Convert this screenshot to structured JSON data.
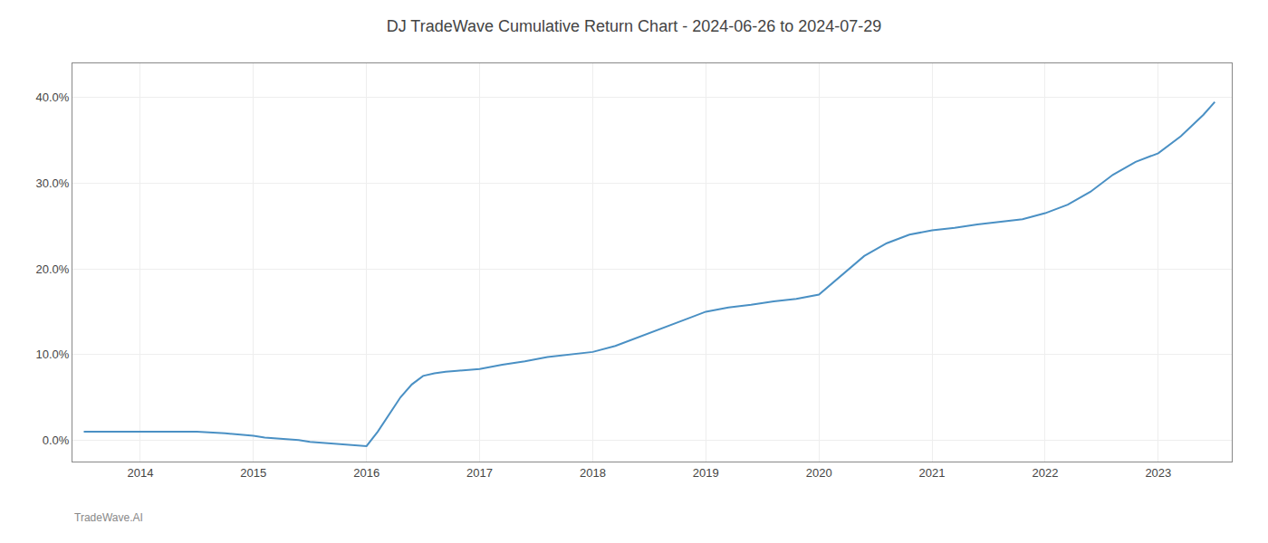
{
  "chart_data": {
    "type": "line",
    "title": "DJ TradeWave Cumulative Return Chart - 2024-06-26 to 2024-07-29",
    "annotations": [
      "TradeWave.AI"
    ],
    "x": [
      2013.5,
      2014.0,
      2014.25,
      2014.5,
      2014.75,
      2015.0,
      2015.1,
      2015.2,
      2015.3,
      2015.4,
      2015.5,
      2015.6,
      2015.7,
      2015.8,
      2015.9,
      2016.0,
      2016.1,
      2016.2,
      2016.3,
      2016.4,
      2016.5,
      2016.6,
      2016.7,
      2016.8,
      2016.9,
      2017.0,
      2017.2,
      2017.4,
      2017.6,
      2017.8,
      2018.0,
      2018.2,
      2018.4,
      2018.6,
      2018.8,
      2019.0,
      2019.2,
      2019.4,
      2019.6,
      2019.8,
      2020.0,
      2020.2,
      2020.4,
      2020.6,
      2020.8,
      2021.0,
      2021.2,
      2021.4,
      2021.6,
      2021.8,
      2022.0,
      2022.2,
      2022.4,
      2022.6,
      2022.8,
      2023.0,
      2023.2,
      2023.4,
      2023.5
    ],
    "values": [
      0.01,
      0.01,
      0.01,
      0.01,
      0.008,
      0.005,
      0.003,
      0.002,
      0.001,
      0.0,
      -0.002,
      -0.003,
      -0.004,
      -0.005,
      -0.006,
      -0.007,
      0.01,
      0.03,
      0.05,
      0.065,
      0.075,
      0.078,
      0.08,
      0.081,
      0.082,
      0.083,
      0.088,
      0.092,
      0.097,
      0.1,
      0.103,
      0.11,
      0.12,
      0.13,
      0.14,
      0.15,
      0.155,
      0.158,
      0.162,
      0.165,
      0.17,
      0.193,
      0.215,
      0.23,
      0.24,
      0.245,
      0.248,
      0.252,
      0.255,
      0.258,
      0.265,
      0.275,
      0.29,
      0.31,
      0.325,
      0.335,
      0.355,
      0.38,
      0.395
    ],
    "color": "#4a90c4",
    "xlim": [
      2013.4,
      2023.65
    ],
    "ylim": [
      -0.025,
      0.44
    ],
    "xticks": [
      2014,
      2015,
      2016,
      2017,
      2018,
      2019,
      2020,
      2021,
      2022,
      2023
    ],
    "yticks": [
      {
        "value": 0.0,
        "label": "0.0%"
      },
      {
        "value": 0.1,
        "label": "10.0%"
      },
      {
        "value": 0.2,
        "label": "20.0%"
      },
      {
        "value": 0.3,
        "label": "30.0%"
      },
      {
        "value": 0.4,
        "label": "40.0%"
      }
    ],
    "grid": true
  }
}
